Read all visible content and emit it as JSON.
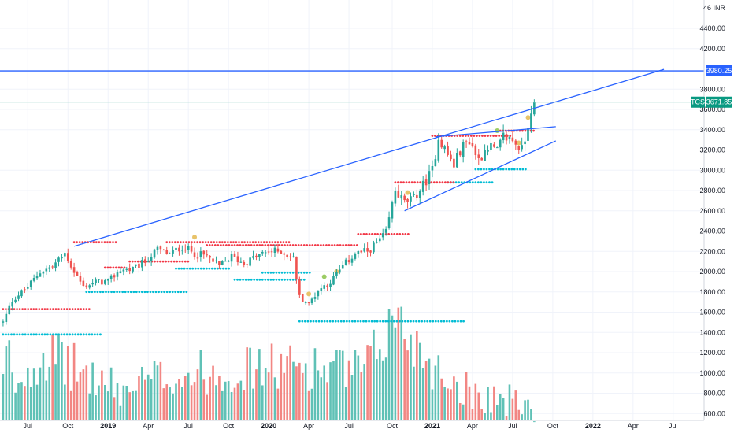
{
  "chart_data": {
    "type": "candlestick",
    "symbol": "TCS",
    "currency_label": "INR",
    "currency_prefix": "46",
    "last_price": "3671.85",
    "resistance_level": "3980.25",
    "ylim": [
      570,
      4700
    ],
    "y_ticks": [
      "4400.00",
      "4200.00",
      "3800.00",
      "3600.00",
      "3400.00",
      "3200.00",
      "3000.00",
      "2800.00",
      "2600.00",
      "2400.00",
      "2200.00",
      "2000.00",
      "1800.00",
      "1600.00",
      "1400.00",
      "1200.00",
      "1000.00",
      "800.00",
      "600.00"
    ],
    "y_tick_values": [
      4400,
      4200,
      3800,
      3600,
      3400,
      3200,
      3000,
      2800,
      2600,
      2400,
      2200,
      2000,
      1800,
      1600,
      1400,
      1200,
      1000,
      800,
      600
    ],
    "x_ticks": [
      {
        "label": "Jul",
        "week": 8,
        "bold": false
      },
      {
        "label": "Oct",
        "week": 21,
        "bold": false
      },
      {
        "label": "2019",
        "week": 34,
        "bold": true
      },
      {
        "label": "Apr",
        "week": 47,
        "bold": false
      },
      {
        "label": "Jul",
        "week": 60,
        "bold": false
      },
      {
        "label": "Oct",
        "week": 73,
        "bold": false
      },
      {
        "label": "2020",
        "week": 86,
        "bold": true
      },
      {
        "label": "Apr",
        "week": 99,
        "bold": false
      },
      {
        "label": "Jul",
        "week": 112,
        "bold": false
      },
      {
        "label": "Oct",
        "week": 126,
        "bold": false
      },
      {
        "label": "2021",
        "week": 139,
        "bold": true
      },
      {
        "label": "Apr",
        "week": 152,
        "bold": false
      },
      {
        "label": "Jul",
        "week": 165,
        "bold": false
      },
      {
        "label": "Oct",
        "week": 178,
        "bold": false
      },
      {
        "label": "2022",
        "week": 191,
        "bold": true
      },
      {
        "label": "Apr",
        "week": 204,
        "bold": false
      },
      {
        "label": "Jul",
        "week": 217,
        "bold": false
      }
    ],
    "week_range": [
      -1,
      227
    ],
    "price_keypoints": [
      [
        0,
        1500
      ],
      [
        3,
        1720
      ],
      [
        8,
        1850
      ],
      [
        12,
        2000
      ],
      [
        16,
        2050
      ],
      [
        20,
        2180
      ],
      [
        23,
        2000
      ],
      [
        26,
        1850
      ],
      [
        30,
        1900
      ],
      [
        34,
        1900
      ],
      [
        38,
        2020
      ],
      [
        42,
        2020
      ],
      [
        46,
        2100
      ],
      [
        50,
        2220
      ],
      [
        54,
        2170
      ],
      [
        58,
        2250
      ],
      [
        62,
        2180
      ],
      [
        66,
        2150
      ],
      [
        70,
        2050
      ],
      [
        74,
        2150
      ],
      [
        78,
        2080
      ],
      [
        82,
        2150
      ],
      [
        86,
        2200
      ],
      [
        90,
        2200
      ],
      [
        94,
        2130
      ],
      [
        96,
        1750
      ],
      [
        99,
        1680
      ],
      [
        102,
        1820
      ],
      [
        106,
        1900
      ],
      [
        110,
        2050
      ],
      [
        114,
        2180
      ],
      [
        118,
        2200
      ],
      [
        121,
        2280
      ],
      [
        124,
        2380
      ],
      [
        127,
        2800
      ],
      [
        130,
        2680
      ],
      [
        133,
        2720
      ],
      [
        136,
        2850
      ],
      [
        139,
        3000
      ],
      [
        141,
        3330
      ],
      [
        144,
        3150
      ],
      [
        146,
        3050
      ],
      [
        148,
        3200
      ],
      [
        151,
        3300
      ],
      [
        154,
        3100
      ],
      [
        157,
        3250
      ],
      [
        160,
        3180
      ],
      [
        162,
        3330
      ],
      [
        165,
        3300
      ],
      [
        168,
        3200
      ],
      [
        170,
        3450
      ],
      [
        171,
        3620
      ],
      [
        172,
        3671.85
      ]
    ],
    "volume_keypoints": [
      [
        0,
        950
      ],
      [
        2,
        1320
      ],
      [
        3,
        900
      ],
      [
        13,
        1250
      ],
      [
        38,
        850
      ],
      [
        51,
        1000
      ],
      [
        86,
        1100
      ],
      [
        99,
        1100
      ],
      [
        117,
        1050
      ],
      [
        127,
        1600
      ],
      [
        141,
        1050
      ],
      [
        152,
        850
      ],
      [
        171,
        700
      ]
    ],
    "trendlines": [
      {
        "x1": 23,
        "y1": 2250,
        "x2": 214,
        "y2": 3995,
        "color": "#2962ff"
      },
      {
        "x1": 140,
        "y1": 3330,
        "x2": 179,
        "y2": 3430,
        "color": "#2962ff"
      },
      {
        "x1": 130,
        "y1": 2600,
        "x2": 179,
        "y2": 3290,
        "color": "#2962ff"
      }
    ],
    "support_dots": [
      {
        "x1": 0,
        "x2": 32,
        "y": 1380
      },
      {
        "x1": 27,
        "x2": 60,
        "y": 1800
      },
      {
        "x1": 56,
        "x2": 74,
        "y": 2030
      },
      {
        "x1": 75,
        "x2": 98,
        "y": 1920
      },
      {
        "x1": 84,
        "x2": 100,
        "y": 1990
      },
      {
        "x1": 96,
        "x2": 150,
        "y": 1510
      },
      {
        "x1": 144,
        "x2": 159,
        "y": 2880
      },
      {
        "x1": 153,
        "x2": 170,
        "y": 3010
      }
    ],
    "resistance_dots": [
      {
        "x1": 0,
        "x2": 28,
        "y": 1630
      },
      {
        "x1": 23,
        "x2": 37,
        "y": 2290
      },
      {
        "x1": 33,
        "x2": 40,
        "y": 2040
      },
      {
        "x1": 41,
        "x2": 60,
        "y": 2100
      },
      {
        "x1": 53,
        "x2": 93,
        "y": 2290
      },
      {
        "x1": 66,
        "x2": 115,
        "y": 2260
      },
      {
        "x1": 115,
        "x2": 132,
        "y": 2370
      },
      {
        "x1": 127,
        "x2": 146,
        "y": 2880
      },
      {
        "x1": 139,
        "x2": 165,
        "y": 3340
      },
      {
        "x1": 161,
        "x2": 172,
        "y": 3390
      }
    ],
    "signal_dots": [
      {
        "x": 62,
        "y": 2340
      },
      {
        "x": 99,
        "y": 1780
      },
      {
        "x": 104,
        "y": 1950
      },
      {
        "x": 108,
        "y": 2000
      },
      {
        "x": 131,
        "y": 2780
      },
      {
        "x": 160,
        "y": 3390
      },
      {
        "x": 167,
        "y": 3270
      },
      {
        "x": 170,
        "y": 3520
      }
    ],
    "colors": {
      "up": "#26a69a",
      "down": "#ef5350",
      "up_volume": "#5fc1b6",
      "down_volume": "#f28683",
      "trendline": "#2962ff",
      "support": "#00bcd4",
      "resistance": "#f23645",
      "signal": "#e8c36a",
      "signal_green": "#9ccc65",
      "badge": "#089981",
      "grid": "#f0f3fa"
    }
  }
}
